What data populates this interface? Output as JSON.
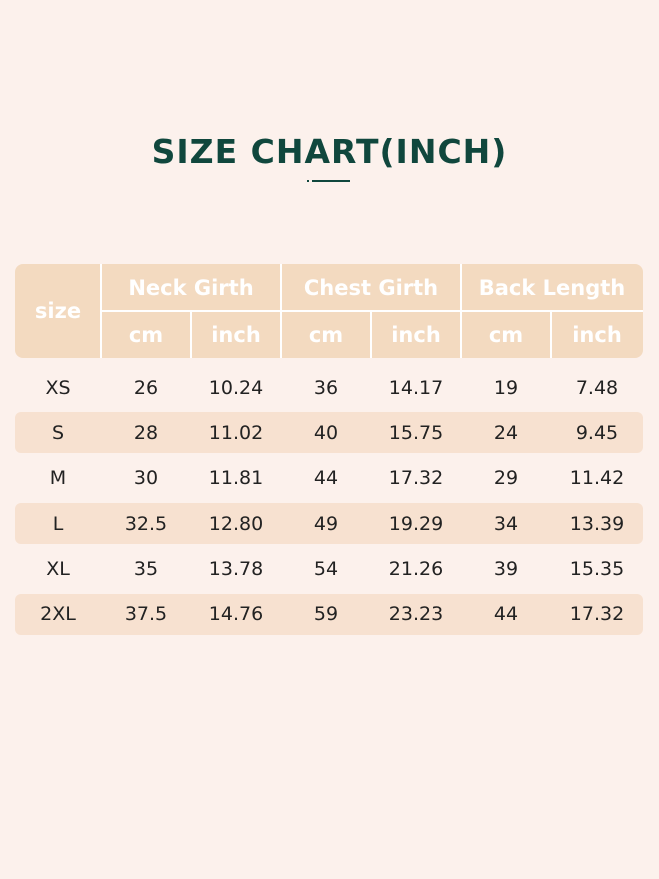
{
  "title": "SIZE CHART(INCH)",
  "colors": {
    "background": "#fcf1ec",
    "header": "#f3dac0",
    "shaded_row": "#f7e1d0",
    "title": "#10473d"
  },
  "table": {
    "size_header": "size",
    "groups": [
      "Neck Girth",
      "Chest Girth",
      "Back Length"
    ],
    "units": [
      "cm",
      "inch",
      "cm",
      "inch",
      "cm",
      "inch"
    ],
    "rows": [
      [
        "XS",
        "26",
        "10.24",
        "36",
        "14.17",
        "19",
        "7.48"
      ],
      [
        "S",
        "28",
        "11.02",
        "40",
        "15.75",
        "24",
        "9.45"
      ],
      [
        "M",
        "30",
        "11.81",
        "44",
        "17.32",
        "29",
        "11.42"
      ],
      [
        "L",
        "32.5",
        "12.80",
        "49",
        "19.29",
        "34",
        "13.39"
      ],
      [
        "XL",
        "35",
        "13.78",
        "54",
        "21.26",
        "39",
        "15.35"
      ],
      [
        "2XL",
        "37.5",
        "14.76",
        "59",
        "23.23",
        "44",
        "17.32"
      ]
    ]
  }
}
